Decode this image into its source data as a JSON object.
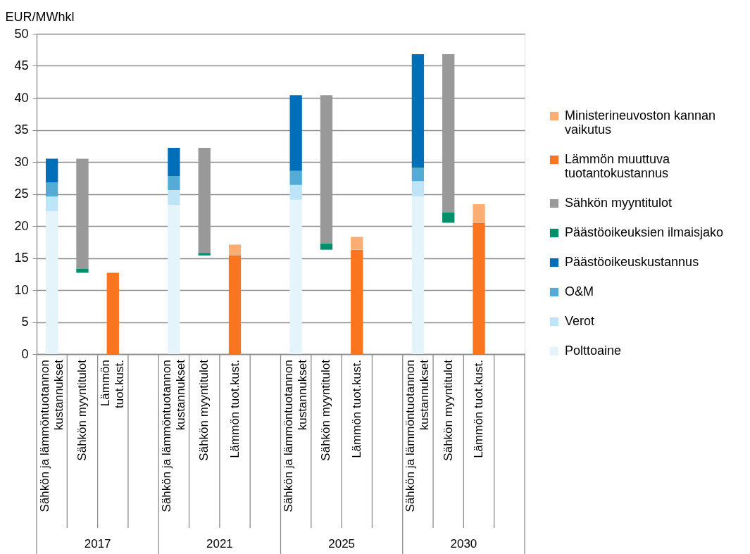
{
  "chart_data": {
    "type": "bar",
    "stacked": true,
    "ylabel": "EUR/MWhkl",
    "categories": [
      "Sähkön ja lämmöntuotannon\nkustannukset",
      "Sähkön myyntitulot",
      "Lämmön\ntuot.kust.",
      null,
      "Sähkön ja lämmöntuotannon\nkustannukset",
      "Sähkön myyntitulot",
      "Lämmön tuot.kust.",
      null,
      "Sähkön ja lämmöntuotannon\nkustannukset",
      "Sähkön myyntitulot",
      "Lämmön tuot.kust.",
      null,
      "Sähkön ja lämmöntuotannon\nkustannukset",
      "Sähkön myyntitulot",
      "Lämmön tuot.kust.",
      null
    ],
    "series": [
      {
        "name": "Polttoaine",
        "color": "#e5f4fb",
        "values": [
          22.3,
          null,
          null,
          null,
          23.3,
          null,
          null,
          null,
          24.1,
          null,
          null,
          null,
          24.6,
          null,
          null,
          null
        ]
      },
      {
        "name": "Verot",
        "color": "#bde4f7",
        "values": [
          2.3,
          null,
          null,
          null,
          2.3,
          null,
          null,
          null,
          2.3,
          null,
          null,
          null,
          2.4,
          null,
          null,
          null
        ]
      },
      {
        "name": "O&M",
        "color": "#52acd5",
        "values": [
          2.2,
          null,
          null,
          null,
          2.2,
          null,
          null,
          null,
          2.2,
          null,
          null,
          null,
          2.1,
          null,
          null,
          null
        ]
      },
      {
        "name": "Päästöoikeuskustannus",
        "color": "#006eb8",
        "values": [
          3.7,
          null,
          null,
          null,
          4.4,
          null,
          null,
          null,
          11.8,
          null,
          null,
          null,
          17.7,
          null,
          null,
          null
        ]
      },
      {
        "name": "Päästöoikeuksien ilmaisjako",
        "color": "#008f6b",
        "values": [
          null,
          0.6,
          null,
          null,
          null,
          0.4,
          null,
          null,
          null,
          1.0,
          null,
          null,
          null,
          1.6,
          null,
          null
        ],
        "base": [
          null,
          12.7,
          null,
          null,
          null,
          15.4,
          null,
          null,
          null,
          16.3,
          null,
          null,
          null,
          20.5,
          null,
          null
        ]
      },
      {
        "name": "Sähkön myyntitulot",
        "color": "#999999",
        "values": [
          null,
          17.2,
          null,
          null,
          null,
          16.4,
          null,
          null,
          null,
          23.1,
          null,
          null,
          null,
          24.7,
          null,
          null
        ],
        "base": [
          null,
          13.3,
          null,
          null,
          null,
          15.8,
          null,
          null,
          null,
          17.3,
          null,
          null,
          null,
          22.1,
          null,
          null
        ]
      },
      {
        "name": "Lämmön muuttuva\ntuotantokustannus",
        "color": "#f97520",
        "values": [
          null,
          null,
          12.7,
          null,
          null,
          null,
          15.4,
          null,
          null,
          null,
          16.3,
          null,
          null,
          null,
          20.5,
          null
        ]
      },
      {
        "name": "Ministerineuvoston kannan\nvaikutus",
        "color": "#fbae74",
        "values": [
          null,
          null,
          null,
          null,
          null,
          null,
          1.7,
          null,
          null,
          null,
          2.0,
          null,
          null,
          null,
          2.9,
          null
        ]
      }
    ],
    "ylim": [
      0,
      50
    ],
    "yticks": [
      0,
      5,
      10,
      15,
      20,
      25,
      30,
      35,
      40,
      45,
      50
    ],
    "grid": "y",
    "legend": "right",
    "annotations": [
      "2017",
      "2021",
      "2025",
      "2030"
    ]
  }
}
